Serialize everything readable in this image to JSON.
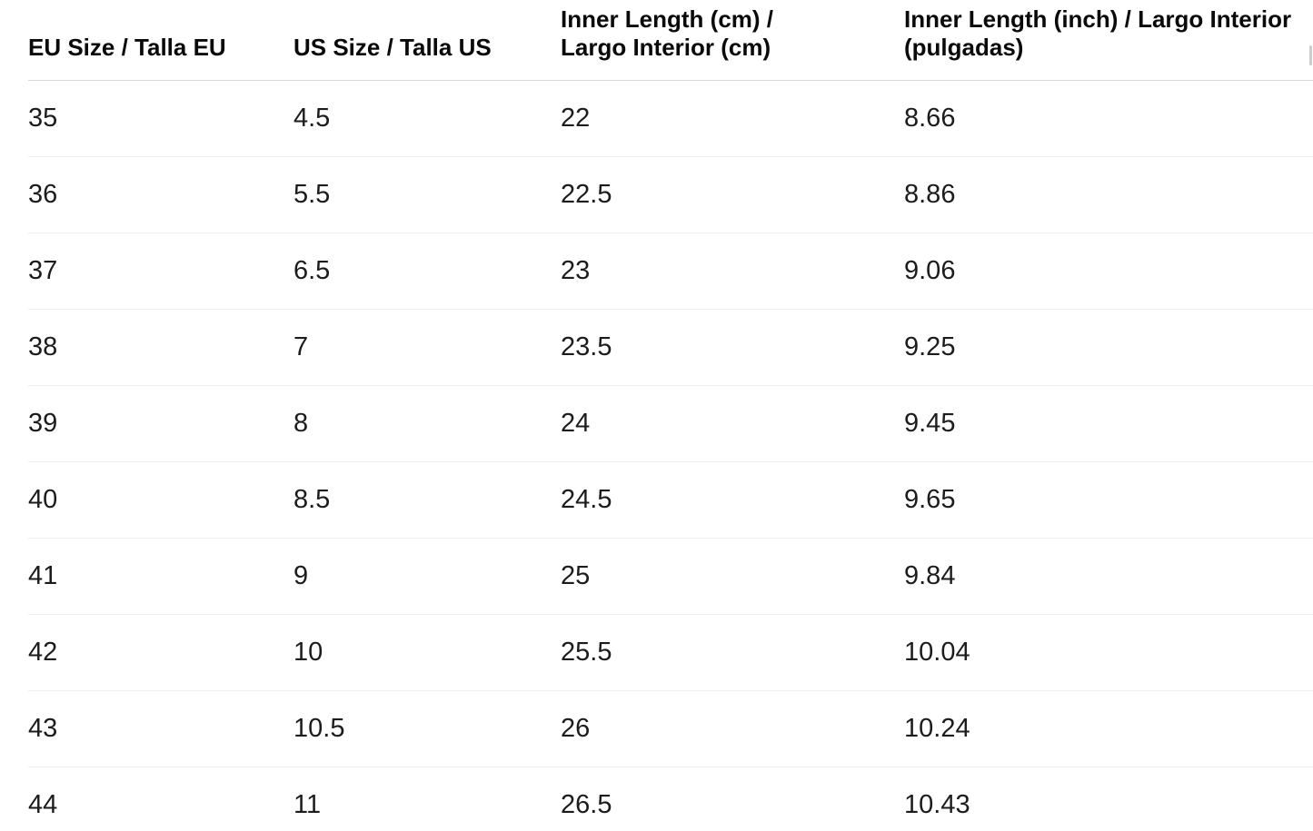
{
  "table": {
    "columns": [
      {
        "label": "EU Size / Talla EU"
      },
      {
        "label": "US Size / Talla US"
      },
      {
        "label": "Inner Length (cm) /\nLargo Interior (cm)"
      },
      {
        "label": "Inner Length (inch) / Largo Interior\n(pulgadas)"
      }
    ],
    "rows": [
      [
        "35",
        "4.5",
        "22",
        "8.66"
      ],
      [
        "36",
        "5.5",
        "22.5",
        "8.86"
      ],
      [
        "37",
        "6.5",
        "23",
        "9.06"
      ],
      [
        "38",
        "7",
        "23.5",
        "9.25"
      ],
      [
        "39",
        "8",
        "24",
        "9.45"
      ],
      [
        "40",
        "8.5",
        "24.5",
        "9.65"
      ],
      [
        "41",
        "9",
        "25",
        "9.84"
      ],
      [
        "42",
        "10",
        "25.5",
        "10.04"
      ],
      [
        "43",
        "10.5",
        "26",
        "10.24"
      ],
      [
        "44",
        "11",
        "26.5",
        "10.43"
      ]
    ]
  },
  "colors": {
    "header_border": "#d8d8d8",
    "row_border": "#efefef",
    "text": "#1c1c1c",
    "scrollbar": "#cdcdcd"
  }
}
